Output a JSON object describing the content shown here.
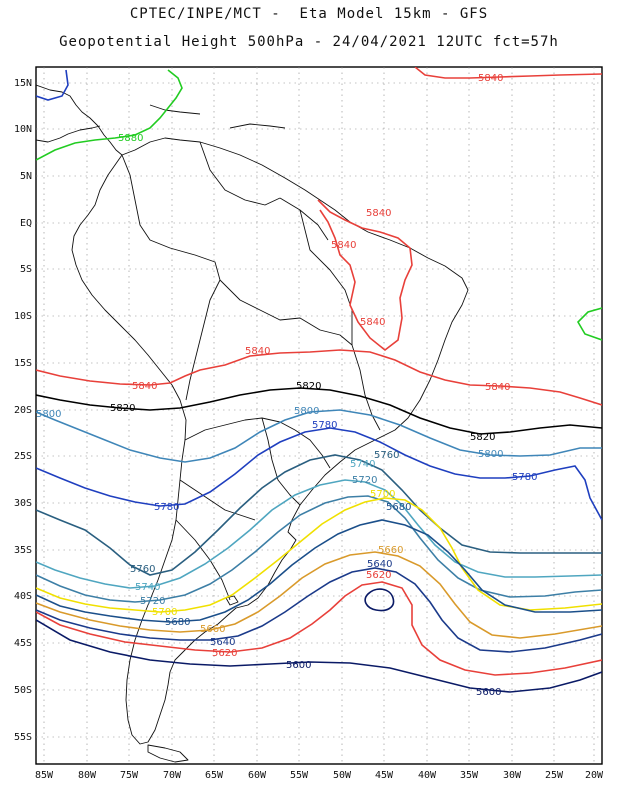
{
  "titles": {
    "line1": "CPTEC/INPE/MCT -  Eta Model 15km - GFS",
    "line2": "Geopotential Height 500hPa - 24/04/2021 12UTC fct=57h"
  },
  "axes": {
    "lat_labels": [
      "15N",
      "10N",
      "5N",
      "EQ",
      "5S",
      "10S",
      "15S",
      "20S",
      "25S",
      "30S",
      "35S",
      "40S",
      "45S",
      "50S",
      "55S"
    ],
    "lon_labels": [
      "85W",
      "80W",
      "75W",
      "70W",
      "65W",
      "60W",
      "55W",
      "50W",
      "45W",
      "40W",
      "35W",
      "30W",
      "25W",
      "20W"
    ]
  },
  "colors": {
    "c5600": "#0a1a66",
    "c5640": "#1b3a8a",
    "c5660": "#d99a2b",
    "c5680": "#1b4f8a",
    "c5700": "#f0e000",
    "c5720": "#3d7fa6",
    "c5740": "#4fa6c0",
    "c5760": "#2a5f80",
    "c5780": "#1f3fbf",
    "c5800": "#3f86b8",
    "c5820": "#000000",
    "c5840": "#e8403a",
    "c5860": "#22cc22",
    "c5620": "#e8403a"
  },
  "contour_labels": {
    "l5840_top": "5840",
    "l5880": "5880",
    "l5840_br1": "5840",
    "l5840_br2": "5840",
    "l5840_br3": "5840",
    "l5840_a": "5840",
    "l5840_b": "5840",
    "l5840_c": "5840",
    "l5820_a": "5820",
    "l5820_b": "5820",
    "l5820_c": "5820",
    "l5800_a": "5800",
    "l5800_b": "5800",
    "l5800_c": "5800",
    "l5780_a": "5780",
    "l5780_b": "5780",
    "l5780_c": "5780",
    "l5760_a": "5760",
    "l5760_b": "5760",
    "l5740_a": "5740",
    "l5740_b": "5740",
    "l5720_a": "5720",
    "l5720_b": "5720",
    "l5700_a": "5700",
    "l5700_b": "5700",
    "l5680_a": "5680",
    "l5680_b": "5680",
    "l5660_a": "5660",
    "l5660_b": "5660",
    "l5640_a": "5640",
    "l5640_b": "5640",
    "l5620_a": "5620",
    "l5620_b": "5620",
    "l5600_a": "5600",
    "l5600_b": "5600"
  }
}
